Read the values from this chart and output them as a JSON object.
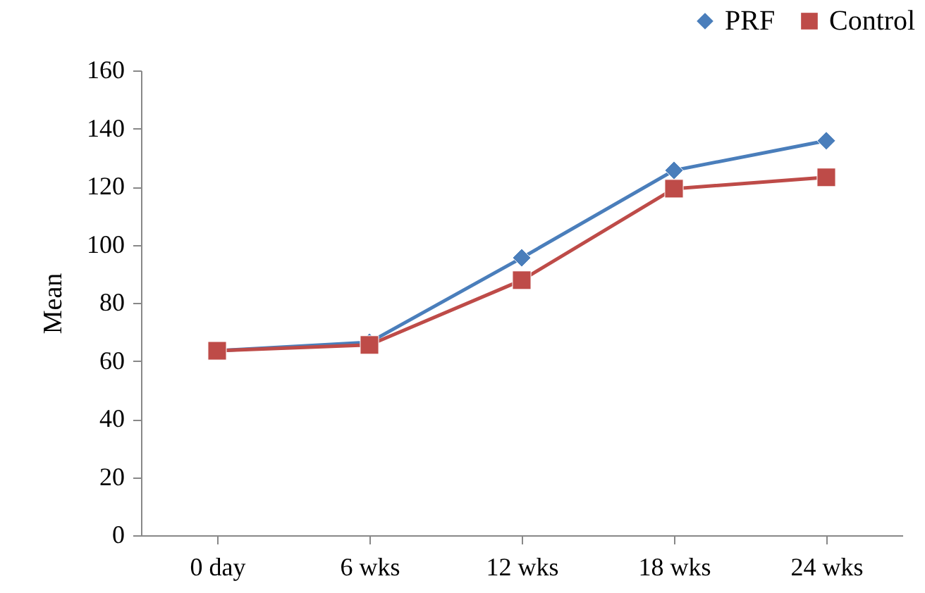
{
  "chart_data": {
    "type": "line",
    "ylabel": "Mean",
    "categories": [
      "0 day",
      "6  wks",
      "12 wks",
      "18 wks",
      "24 wks"
    ],
    "series": [
      {
        "name": "PRF",
        "color": "#4a7ebb",
        "marker": "diamond",
        "values": [
          63.5,
          66.4,
          95.5,
          125.6,
          135.8
        ]
      },
      {
        "name": "Control",
        "color": "#be4b48",
        "marker": "square",
        "values": [
          63.5,
          65.5,
          87.8,
          119.3,
          123.2
        ]
      }
    ],
    "ylim": [
      0,
      160
    ],
    "yticks": [
      0,
      20,
      40,
      60,
      80,
      100,
      120,
      140,
      160
    ],
    "grid": false,
    "legend": "top right",
    "line_style": "solid"
  }
}
